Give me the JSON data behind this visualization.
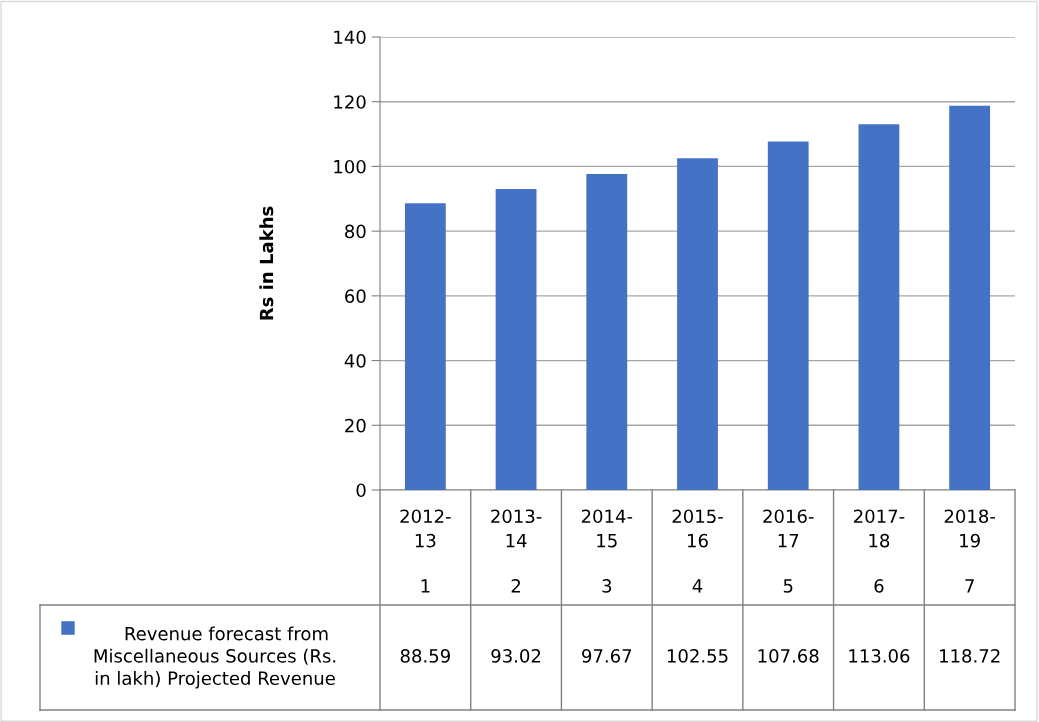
{
  "chart_data": {
    "type": "bar",
    "ylabel": "Rs in Lakhs",
    "categories": [
      "2012-13",
      "2013-14",
      "2014-15",
      "2015-16",
      "2016-17",
      "2017-18",
      "2018-19"
    ],
    "series": [
      {
        "name": "Revenue forecast from Miscellaneous Sources (Rs. in lakh) Projected Revenue",
        "color": "#4472c4",
        "values": [
          88.59,
          93.02,
          97.67,
          102.55,
          107.68,
          113.06,
          118.72
        ]
      }
    ],
    "annotations": [
      "1",
      "2",
      "3",
      "4",
      "5",
      "6",
      "7"
    ],
    "ylim": [
      0,
      140
    ],
    "yticks": [
      0,
      20,
      40,
      60,
      80,
      100,
      120,
      140
    ],
    "grid": "y",
    "legend": "bottom",
    "data_labels": true
  }
}
